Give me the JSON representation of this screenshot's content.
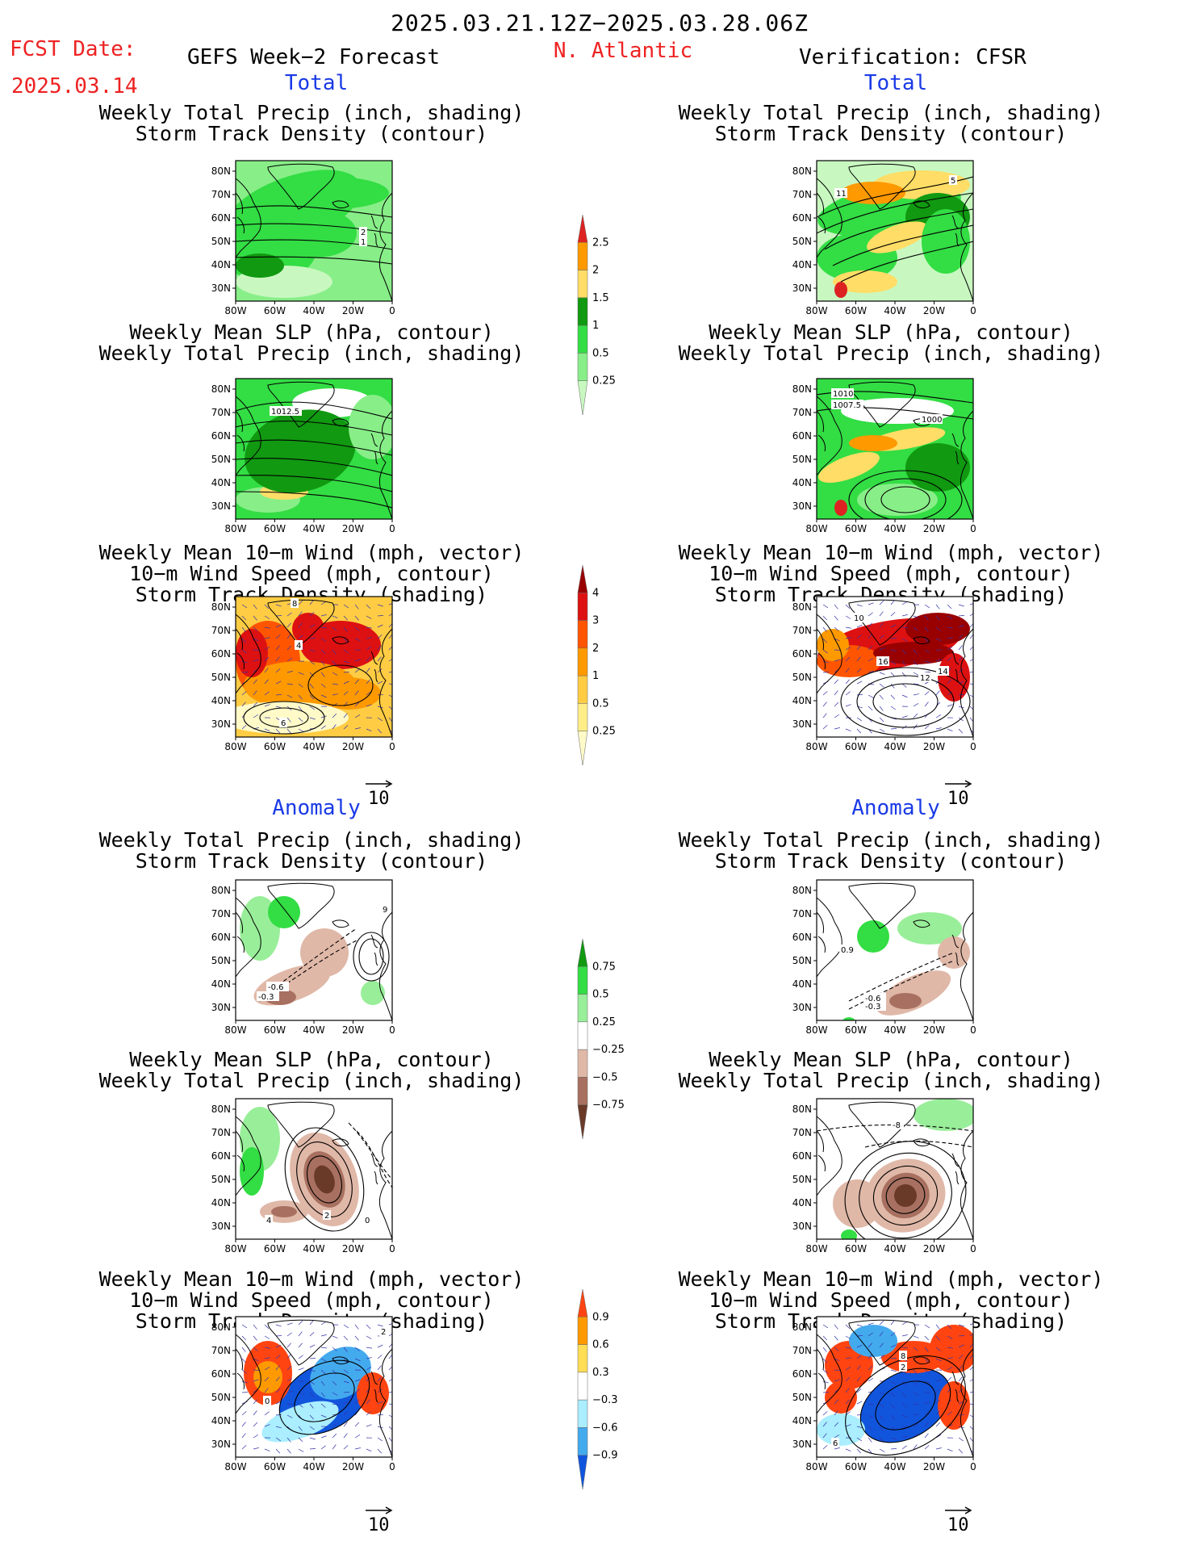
{
  "header": {
    "period": "2025.03.21.12Z−2025.03.28.06Z",
    "fcst_label": "FCST Date:",
    "fcst_date": "2025.03.14",
    "forecast_title": "GEFS Week−2 Forecast",
    "region": "N. Atlantic",
    "verification_title": "Verification: CFSR"
  },
  "sections": {
    "total": "Total",
    "anomaly": "Anomaly"
  },
  "axes": {
    "lat_ticks": [
      "80N",
      "70N",
      "60N",
      "50N",
      "40N",
      "30N"
    ],
    "lon_ticks": [
      "80W",
      "60W",
      "40W",
      "20W",
      "0"
    ]
  },
  "titles": {
    "precip_storm": [
      "Weekly Total Precip (inch, shading)",
      "Storm Track Density (contour)"
    ],
    "slp_precip": [
      "Weekly Mean SLP (hPa, contour)",
      "Weekly Total Precip (inch, shading)"
    ],
    "wind_storm": [
      "Weekly Mean 10−m Wind (mph, vector)",
      "10−m Wind Speed (mph, contour)",
      "Storm Track Density (shading)"
    ]
  },
  "vector_scale": "10",
  "contour_labels": {
    "f_total_precip": [
      "2",
      "1"
    ],
    "v_total_precip": [
      "11",
      "5"
    ],
    "f_total_slp": [
      "1012.5"
    ],
    "v_total_slp": [
      "1010",
      "1007.5",
      "1000"
    ],
    "f_total_wind": [
      "8",
      "4",
      "6"
    ],
    "v_total_wind": [
      "10",
      "16",
      "12",
      "14"
    ],
    "f_anom_precip": [
      "-0.6",
      "-0.3",
      "9"
    ],
    "v_anom_precip": [
      "0.9",
      "-0.6",
      "-0.3"
    ],
    "f_anom_slp": [
      "2",
      "4",
      "0"
    ],
    "v_anom_slp": [
      "-8"
    ],
    "f_anom_wind": [
      "2",
      "0"
    ],
    "v_anom_wind": [
      "8",
      "2",
      "6"
    ]
  },
  "colorbars": [
    {
      "id": "precip_total",
      "labels": [
        "2.5",
        "2",
        "1.5",
        "1",
        "0.5",
        "0.25"
      ],
      "colors": [
        "#dd2222",
        "#ff9900",
        "#ffdd66",
        "#119911",
        "#33dd44",
        "#88ee88",
        "#c8f8c0"
      ]
    },
    {
      "id": "storm_total",
      "labels": [
        "4",
        "3",
        "2",
        "1",
        "0.5",
        "0.25"
      ],
      "colors": [
        "#990000",
        "#dd1111",
        "#ff5500",
        "#ff9900",
        "#ffcc44",
        "#ffee88",
        "#fffac8"
      ]
    },
    {
      "id": "precip_anom",
      "labels": [
        "0.75",
        "0.5",
        "0.25",
        "−0.25",
        "−0.5",
        "−0.75"
      ],
      "colors": [
        "#119911",
        "#33dd44",
        "#99ee99",
        "#ffffff",
        "#e0b8a8",
        "#a87060",
        "#6a3a28"
      ]
    },
    {
      "id": "storm_anom",
      "labels": [
        "0.9",
        "0.6",
        "0.3",
        "−0.3",
        "−0.6",
        "−0.9"
      ],
      "colors": [
        "#ff4411",
        "#ff9900",
        "#ffdd55",
        "#ffffff",
        "#aaeeff",
        "#44aaee",
        "#1155dd"
      ]
    }
  ],
  "colors": {
    "red_text": "#ee2222",
    "blue_text": "#1a3ae6"
  }
}
